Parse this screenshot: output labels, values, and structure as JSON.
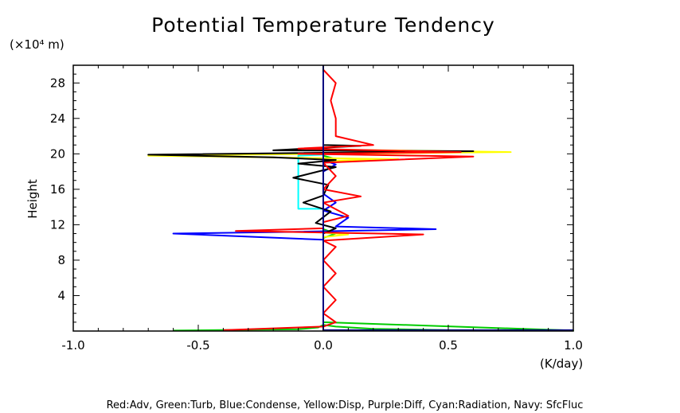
{
  "chart_data": {
    "type": "line",
    "title": "Potential Temperature Tendency",
    "ylabel": "Height",
    "yunit": "(×10⁴ m)",
    "xunit": "(K/day)",
    "xlim": [
      -1.0,
      1.0
    ],
    "ylim": [
      0,
      30
    ],
    "x_ticks": [
      "-1.0",
      "-0.5",
      "0.0",
      "0.5",
      "1.0"
    ],
    "y_ticks": [
      "4",
      "8",
      "12",
      "16",
      "20",
      "24",
      "28"
    ],
    "legend_text": "Red:Adv, Green:Turb, Blue:Condense, Yellow:Disp, Purple:Diff, Cyan:Radiation, Navy: SfcFluc",
    "series": [
      {
        "color": "#00cc00",
        "points": [
          [
            -0.6,
            0.05
          ],
          [
            -0.1,
            0.2
          ],
          [
            -0.02,
            0.4
          ],
          [
            0.0,
            0.7
          ],
          [
            0.05,
            0.5
          ],
          [
            0.2,
            0.25
          ],
          [
            0.5,
            0.1
          ],
          [
            1.0,
            0.05
          ],
          [
            0.0,
            1.0
          ],
          [
            0.0,
            10.5
          ],
          [
            0.05,
            11.0
          ],
          [
            0.0,
            11.5
          ],
          [
            0.0,
            19.0
          ],
          [
            0.05,
            19.4
          ],
          [
            0.0,
            19.8
          ],
          [
            0.0,
            30
          ]
        ]
      },
      {
        "color": "#0000ff",
        "points": [
          [
            0.0,
            0
          ],
          [
            0.0,
            10.3
          ],
          [
            -0.6,
            11.0
          ],
          [
            -0.1,
            11.2
          ],
          [
            0.45,
            11.5
          ],
          [
            0.05,
            11.8
          ],
          [
            0.1,
            12.8
          ],
          [
            0.0,
            13.6
          ],
          [
            0.05,
            14.5
          ],
          [
            0.0,
            15.5
          ],
          [
            0.0,
            18.0
          ],
          [
            0.05,
            18.8
          ],
          [
            0.0,
            19.3
          ],
          [
            0.0,
            30
          ]
        ]
      },
      {
        "color": "#00ffff",
        "points": [
          [
            0.0,
            0
          ],
          [
            0.0,
            13.8
          ],
          [
            -0.1,
            13.8
          ],
          [
            -0.1,
            19.8
          ],
          [
            0.0,
            19.9
          ],
          [
            0.0,
            30
          ]
        ]
      },
      {
        "color": "#ffff00",
        "points": [
          [
            0.0,
            0
          ],
          [
            0.0,
            10.6
          ],
          [
            0.1,
            10.9
          ],
          [
            0.0,
            11.1
          ],
          [
            0.0,
            19.2
          ],
          [
            0.3,
            19.4
          ],
          [
            -0.7,
            19.8
          ],
          [
            0.75,
            20.2
          ],
          [
            0.0,
            20.5
          ],
          [
            0.0,
            21.0
          ],
          [
            0.0,
            30
          ]
        ]
      },
      {
        "color": "#000000",
        "points": [
          [
            0.0,
            30
          ],
          [
            0.0,
            21.0
          ],
          [
            0.15,
            20.9
          ],
          [
            -0.2,
            20.4
          ],
          [
            0.6,
            20.3
          ],
          [
            -0.7,
            19.9
          ],
          [
            -0.2,
            19.6
          ],
          [
            0.05,
            19.3
          ],
          [
            -0.1,
            18.9
          ],
          [
            0.05,
            18.5
          ],
          [
            -0.12,
            17.3
          ],
          [
            0.02,
            16.5
          ],
          [
            0.0,
            15.3
          ],
          [
            -0.08,
            14.5
          ],
          [
            0.03,
            13.5
          ],
          [
            -0.03,
            12.2
          ],
          [
            0.05,
            11.6
          ],
          [
            0.0,
            11.0
          ],
          [
            0.0,
            0
          ]
        ]
      },
      {
        "color": "#ff0000",
        "points": [
          [
            -0.4,
            0.1
          ],
          [
            0.0,
            0.5
          ],
          [
            0.05,
            1.0
          ],
          [
            0.0,
            2.0
          ],
          [
            0.05,
            3.5
          ],
          [
            0.0,
            5.0
          ],
          [
            0.05,
            6.5
          ],
          [
            0.0,
            8.0
          ],
          [
            0.05,
            9.5
          ],
          [
            0.0,
            10.2
          ],
          [
            0.4,
            10.9
          ],
          [
            -0.35,
            11.3
          ],
          [
            0.0,
            11.6
          ],
          [
            0.0,
            12.3
          ],
          [
            0.1,
            13.0
          ],
          [
            0.0,
            14.5
          ],
          [
            0.15,
            15.2
          ],
          [
            0.0,
            16.0
          ],
          [
            0.05,
            17.5
          ],
          [
            0.0,
            19.0
          ],
          [
            0.6,
            19.7
          ],
          [
            -0.1,
            20.0
          ],
          [
            0.55,
            20.2
          ],
          [
            -0.1,
            20.6
          ],
          [
            0.2,
            21.0
          ],
          [
            0.05,
            22.0
          ],
          [
            0.05,
            24.0
          ],
          [
            0.03,
            26.0
          ],
          [
            0.05,
            28.0
          ],
          [
            0.0,
            29.5
          ]
        ]
      },
      {
        "color": "#000080",
        "points": [
          [
            0.0,
            30
          ],
          [
            0.0,
            0.1
          ],
          [
            1.0,
            0.1
          ]
        ]
      }
    ]
  }
}
